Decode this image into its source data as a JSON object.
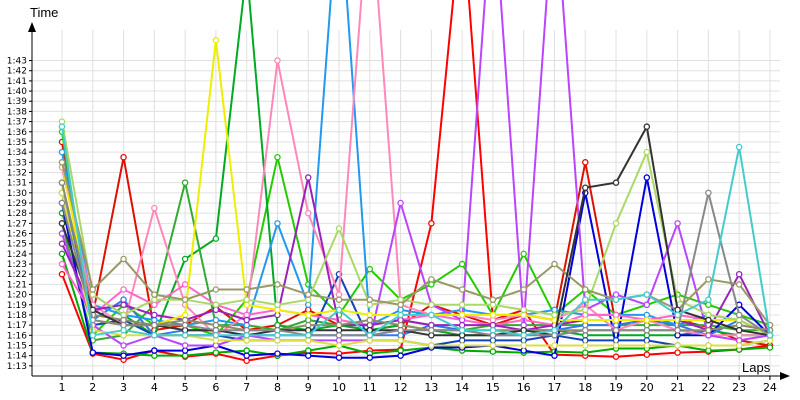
{
  "chart_data": {
    "type": "line",
    "title": "",
    "ylabel": "Time",
    "xlabel": "Laps",
    "x": [
      1,
      2,
      3,
      4,
      5,
      6,
      7,
      8,
      9,
      10,
      11,
      12,
      13,
      14,
      15,
      16,
      17,
      18,
      19,
      20,
      21,
      22,
      23,
      24
    ],
    "x_tick_labels": [
      "1",
      "2",
      "3",
      "4",
      "5",
      "6",
      "7",
      "8",
      "9",
      "10",
      "11",
      "12",
      "13",
      "14",
      "15",
      "16",
      "17",
      "18",
      "19",
      "20",
      "21",
      "22",
      "23",
      "24"
    ],
    "ylim": [
      "1:12",
      "1:46"
    ],
    "y_tick_labels": [
      "1:13",
      "1:14",
      "1:15",
      "1:16",
      "1:17",
      "1:18",
      "1:19",
      "1:20",
      "1:21",
      "1:22",
      "1:23",
      "1:24",
      "1:25",
      "1:26",
      "1:27",
      "1:28",
      "1:29",
      "1:30",
      "1:31",
      "1:32",
      "1:33",
      "1:34",
      "1:35",
      "1:36",
      "1:37",
      "1:38",
      "1:39",
      "1:40",
      "1:41",
      "1:42",
      "1:43"
    ],
    "grid": true,
    "legend": false,
    "series": [
      {
        "color": "#ff0000",
        "values": [
          "1:22.0",
          "1:14.2",
          "1:13.6",
          "1:14.5",
          "1:13.9",
          "1:14.2",
          "1:13.5",
          "1:14.0",
          "1:14.3",
          "1:14.2",
          "1:14.5",
          "1:14.6",
          "1:27.0",
          "1:58.0",
          "1:17.5",
          "1:18.5",
          "1:14.1",
          "1:14.0",
          "1:13.9",
          "1:14.1",
          "1:14.3",
          "1:14.4",
          "1:14.6",
          "1:15.0"
        ]
      },
      {
        "color": "#dd1100",
        "values": [
          "1:35.0",
          "1:18.0",
          "1:33.5",
          "1:16.5",
          "1:17.0",
          "1:18.8",
          "1:16.5",
          "1:17.0",
          "1:18.5",
          "1:17.0",
          "1:16.5",
          "1:17.0",
          "1:19.0",
          "1:18.0",
          "1:17.0",
          "1:18.0",
          "1:17.5",
          "1:33.0",
          "1:17.0",
          "1:17.5",
          "1:17.5",
          "1:16.8",
          "1:15.5",
          "1:15.0"
        ]
      },
      {
        "color": "#00aa00",
        "values": [
          "1:24.0",
          "1:14.3",
          "1:14.2",
          "1:14.0",
          "1:14.0",
          "1:14.3",
          "1:14.5",
          "1:14.0",
          "1:14.5",
          "1:15.0",
          "1:14.2",
          "1:14.5",
          "1:14.8",
          "1:14.5",
          "1:14.4",
          "1:14.3",
          "1:14.4",
          "1:14.3",
          "1:14.7",
          "1:14.7",
          "1:15.0",
          "1:14.5",
          "1:14.6",
          "1:14.8"
        ]
      },
      {
        "color": "#22cc00",
        "values": [
          "1:36.0",
          "1:16.0",
          "1:19.0",
          "1:17.0",
          "1:17.0",
          "1:16.0",
          "1:19.5",
          "1:33.5",
          "1:21.0",
          "1:18.0",
          "1:22.5",
          "1:19.5",
          "1:21.0",
          "1:23.0",
          "1:18.0",
          "1:24.0",
          "1:18.0",
          "1:20.5",
          "1:18.0",
          "1:19.0",
          "1:20.0",
          "1:19.0",
          "1:18.0",
          "1:17.0"
        ]
      },
      {
        "color": "#00aa22",
        "values": [
          "1:28.0",
          "1:20.0",
          "1:18.0",
          "1:16.0",
          "1:23.5",
          "1:25.5",
          "1:52.0",
          "1:17.0",
          "1:16.5",
          "1:17.0",
          "1:16.5",
          "1:17.0",
          "1:16.5",
          "1:16.0",
          "1:16.0",
          "1:16.5",
          "1:16.5",
          "1:16.0",
          "1:16.0",
          "1:16.0",
          "1:16.0",
          "1:16.5",
          "1:16.0",
          "1:16.0"
        ]
      },
      {
        "color": "#33aa33",
        "values": [
          "1:27.0",
          "1:15.5",
          "1:16.0",
          "1:19.0",
          "1:31.0",
          "1:17.0",
          "1:17.0",
          "1:16.5",
          "1:17.5",
          "1:17.0",
          "1:17.0",
          "1:17.5",
          "1:17.0",
          "1:16.5",
          "1:17.0",
          "1:17.0",
          "1:17.0",
          "1:17.0",
          "1:17.0",
          "1:17.0",
          "1:17.0",
          "1:17.0",
          "1:16.5",
          "1:16.5"
        ]
      },
      {
        "color": "#0000dd",
        "values": [
          "1:29.0",
          "1:14.3",
          "1:14.0",
          "1:14.5",
          "1:14.5",
          "1:15.0",
          "1:14.0",
          "1:14.2",
          "1:14.0",
          "1:13.8",
          "1:13.8",
          "1:14.0",
          "1:14.8",
          "1:14.8",
          "1:15.0",
          "1:14.5",
          "1:14.0",
          "1:30.0",
          "1:15.0",
          "1:31.5",
          "1:16.0",
          "1:16.0",
          "1:19.0",
          "1:16.0"
        ]
      },
      {
        "color": "#1144bb",
        "values": [
          "1:30.0",
          "1:17.0",
          "1:17.5",
          "1:16.0",
          "1:16.0",
          "1:16.0",
          "1:15.5",
          "1:15.5",
          "1:15.5",
          "1:22.0",
          "1:15.5",
          "1:15.5",
          "1:15.0",
          "1:15.5",
          "1:15.5",
          "1:15.5",
          "1:16.0",
          "1:15.5",
          "1:15.5",
          "1:15.5",
          "1:15.0",
          "1:15.0",
          "1:15.0",
          "1:15.5"
        ]
      },
      {
        "color": "#3377ee",
        "values": [
          "1:31.0",
          "1:17.5",
          "1:19.5",
          "1:16.0",
          "1:16.5",
          "1:16.5",
          "1:16.0",
          "1:16.0",
          "1:16.0",
          "1:16.0",
          "1:16.0",
          "1:16.0",
          "1:17.0",
          "1:16.5",
          "1:16.0",
          "1:16.0",
          "1:16.5",
          "1:17.0",
          "1:17.0",
          "1:17.5",
          "1:17.0",
          "1:16.0",
          "1:17.5",
          "1:16.0"
        ]
      },
      {
        "color": "#2299ee",
        "values": [
          "1:34.0",
          "1:19.0",
          "1:18.0",
          "1:17.5",
          "1:17.0",
          "1:17.5",
          "1:17.0",
          "1:27.0",
          "1:19.0",
          "1:60.0",
          "1:17.0",
          "1:18.5",
          "1:18.0",
          "1:18.5",
          "1:18.0",
          "1:18.0",
          "1:18.5",
          "1:18.0",
          "1:18.0",
          "1:18.0",
          "1:17.0",
          "1:18.0",
          "1:17.5",
          "1:16.0"
        ]
      },
      {
        "color": "#ff88bb",
        "values": [
          "1:32.5",
          "1:19.0",
          "1:17.0",
          "1:28.5",
          "1:19.0",
          "1:16.0",
          "1:18.0",
          "1:43.0",
          "1:28.0",
          "1:20.0",
          "1:60.0",
          "1:19.0",
          "1:18.0",
          "1:18.0",
          "1:17.5",
          "1:18.0",
          "1:17.5",
          "1:19.0",
          "1:16.5",
          "1:17.5",
          "1:16.5",
          "1:16.0",
          "1:16.0",
          "1:16.0"
        ]
      },
      {
        "color": "#ff66cc",
        "values": [
          "1:23.0",
          "1:18.0",
          "1:20.5",
          "1:19.0",
          "1:21.0",
          "1:19.0",
          "1:18.0",
          "1:18.5",
          "1:18.0",
          "1:17.5",
          "1:17.0",
          "1:17.5",
          "1:18.0",
          "1:17.5",
          "1:17.0",
          "1:17.5",
          "1:17.0",
          "1:18.0",
          "1:18.0",
          "1:17.5",
          "1:18.0",
          "1:17.5",
          "1:17.5",
          "1:16.0"
        ]
      },
      {
        "color": "#bb44ff",
        "values": [
          "1:26.0",
          "1:17.0",
          "1:15.0",
          "1:16.0",
          "1:15.0",
          "1:15.0",
          "1:16.0",
          "1:15.5",
          "1:15.5",
          "1:15.5",
          "1:15.5",
          "1:29.0",
          "1:19.0",
          "1:17.5",
          "1:60.0",
          "1:17.0",
          "1:60.0",
          "1:18.5",
          "1:20.0",
          "1:19.0",
          "1:27.0",
          "1:16.0",
          "1:15.5",
          "1:16.0"
        ]
      },
      {
        "color": "#9922bb",
        "values": [
          "1:25.0",
          "1:18.5",
          "1:19.0",
          "1:18.0",
          "1:17.5",
          "1:18.5",
          "1:17.5",
          "1:18.0",
          "1:31.5",
          "1:17.0",
          "1:17.0",
          "1:17.5",
          "1:17.0",
          "1:17.0",
          "1:17.0",
          "1:16.5",
          "1:17.0",
          "1:17.5",
          "1:17.5",
          "1:17.5",
          "1:17.5",
          "1:16.5",
          "1:22.0",
          "1:16.0"
        ]
      },
      {
        "color": "#eeee00",
        "values": [
          "1:33.0",
          "1:17.5",
          "1:17.0",
          "1:17.0",
          "1:18.0",
          "1:45.0",
          "1:19.0",
          "1:18.5",
          "1:18.0",
          "1:18.5",
          "1:18.0",
          "1:18.0",
          "1:18.0",
          "1:18.0",
          "1:18.0",
          "1:18.0",
          "1:17.5",
          "1:17.5",
          "1:17.5",
          "1:17.5",
          "1:17.5",
          "1:17.5",
          "1:17.5",
          "1:16.0"
        ]
      },
      {
        "color": "#dddd44",
        "values": [
          "1:30.0",
          "1:16.5",
          "1:16.0",
          "1:16.0",
          "1:16.0",
          "1:15.5",
          "1:15.5",
          "1:15.5",
          "1:15.5",
          "1:15.0",
          "1:15.5",
          "1:15.5",
          "1:15.0",
          "1:15.0",
          "1:15.0",
          "1:15.0",
          "1:15.0",
          "1:15.0",
          "1:15.0",
          "1:15.0",
          "1:15.0",
          "1:15.0",
          "1:15.0",
          "1:15.5"
        ]
      },
      {
        "color": "#aad866",
        "values": [
          "1:37.0",
          "1:20.0",
          "1:18.0",
          "1:19.5",
          "1:19.5",
          "1:19.0",
          "1:19.5",
          "1:19.0",
          "1:19.5",
          "1:26.5",
          "1:19.0",
          "1:19.5",
          "1:19.0",
          "1:19.0",
          "1:19.0",
          "1:18.5",
          "1:18.0",
          "1:18.5",
          "1:27.0",
          "1:34.0",
          "1:19.5",
          "1:18.0",
          "1:17.5",
          "1:16.0"
        ]
      },
      {
        "color": "#999966",
        "values": [
          "1:33.0",
          "1:20.5",
          "1:23.5",
          "1:20.0",
          "1:19.5",
          "1:20.5",
          "1:20.5",
          "1:21.0",
          "1:20.0",
          "1:19.5",
          "1:19.5",
          "1:19.0",
          "1:21.5",
          "1:20.5",
          "1:19.5",
          "1:20.5",
          "1:23.0",
          "1:20.5",
          "1:19.5",
          "1:20.0",
          "1:18.5",
          "1:21.5",
          "1:21.0",
          "1:17.0"
        ]
      },
      {
        "color": "#8c8c66",
        "values": [
          "1:31.0",
          "1:18.0",
          "1:17.5",
          "1:17.0",
          "1:17.5",
          "1:17.0",
          "1:16.5",
          "1:16.5",
          "1:17.0",
          "1:17.0",
          "1:17.5",
          "1:17.0",
          "1:16.5",
          "1:16.5",
          "1:16.5",
          "1:16.5",
          "1:16.5",
          "1:16.5",
          "1:16.5",
          "1:16.5",
          "1:16.5",
          "1:16.5",
          "1:17.0",
          "1:16.5"
        ]
      },
      {
        "color": "#333333",
        "values": [
          "1:27.0",
          "1:18.5",
          "1:17.0",
          "1:17.0",
          "1:16.5",
          "1:16.5",
          "1:16.0",
          "1:16.5",
          "1:16.5",
          "1:16.5",
          "1:16.5",
          "1:16.5",
          "1:16.0",
          "1:16.0",
          "1:16.0",
          "1:16.5",
          "1:16.0",
          "1:30.5",
          "1:31.0",
          "1:36.5",
          "1:18.5",
          "1:17.5",
          "1:16.5",
          "1:16.0"
        ]
      },
      {
        "color": "#888888",
        "values": [
          "1:29.0",
          "1:17.5",
          "1:17.0",
          "1:17.0",
          "1:17.0",
          "1:16.5",
          "1:16.5",
          "1:16.5",
          "1:16.0",
          "1:16.0",
          "1:16.0",
          "1:16.5",
          "1:16.5",
          "1:16.5",
          "1:16.0",
          "1:16.0",
          "1:16.0",
          "1:16.5",
          "1:16.5",
          "1:16.5",
          "1:16.5",
          "1:30.0",
          "1:18.0",
          "1:16.0"
        ]
      },
      {
        "color": "#44cccc",
        "values": [
          "1:36.5",
          "1:16.0",
          "1:16.5",
          "1:16.0",
          "1:16.0",
          "1:16.0",
          "1:16.0",
          "1:16.0",
          "1:16.0",
          "1:18.5",
          "1:16.0",
          "1:18.0",
          "1:18.0",
          "1:16.5",
          "1:16.5",
          "1:16.0",
          "1:16.5",
          "1:19.5",
          "1:19.5",
          "1:20.0",
          "1:18.0",
          "1:19.5",
          "1:34.5",
          "1:16.0"
        ]
      }
    ]
  }
}
